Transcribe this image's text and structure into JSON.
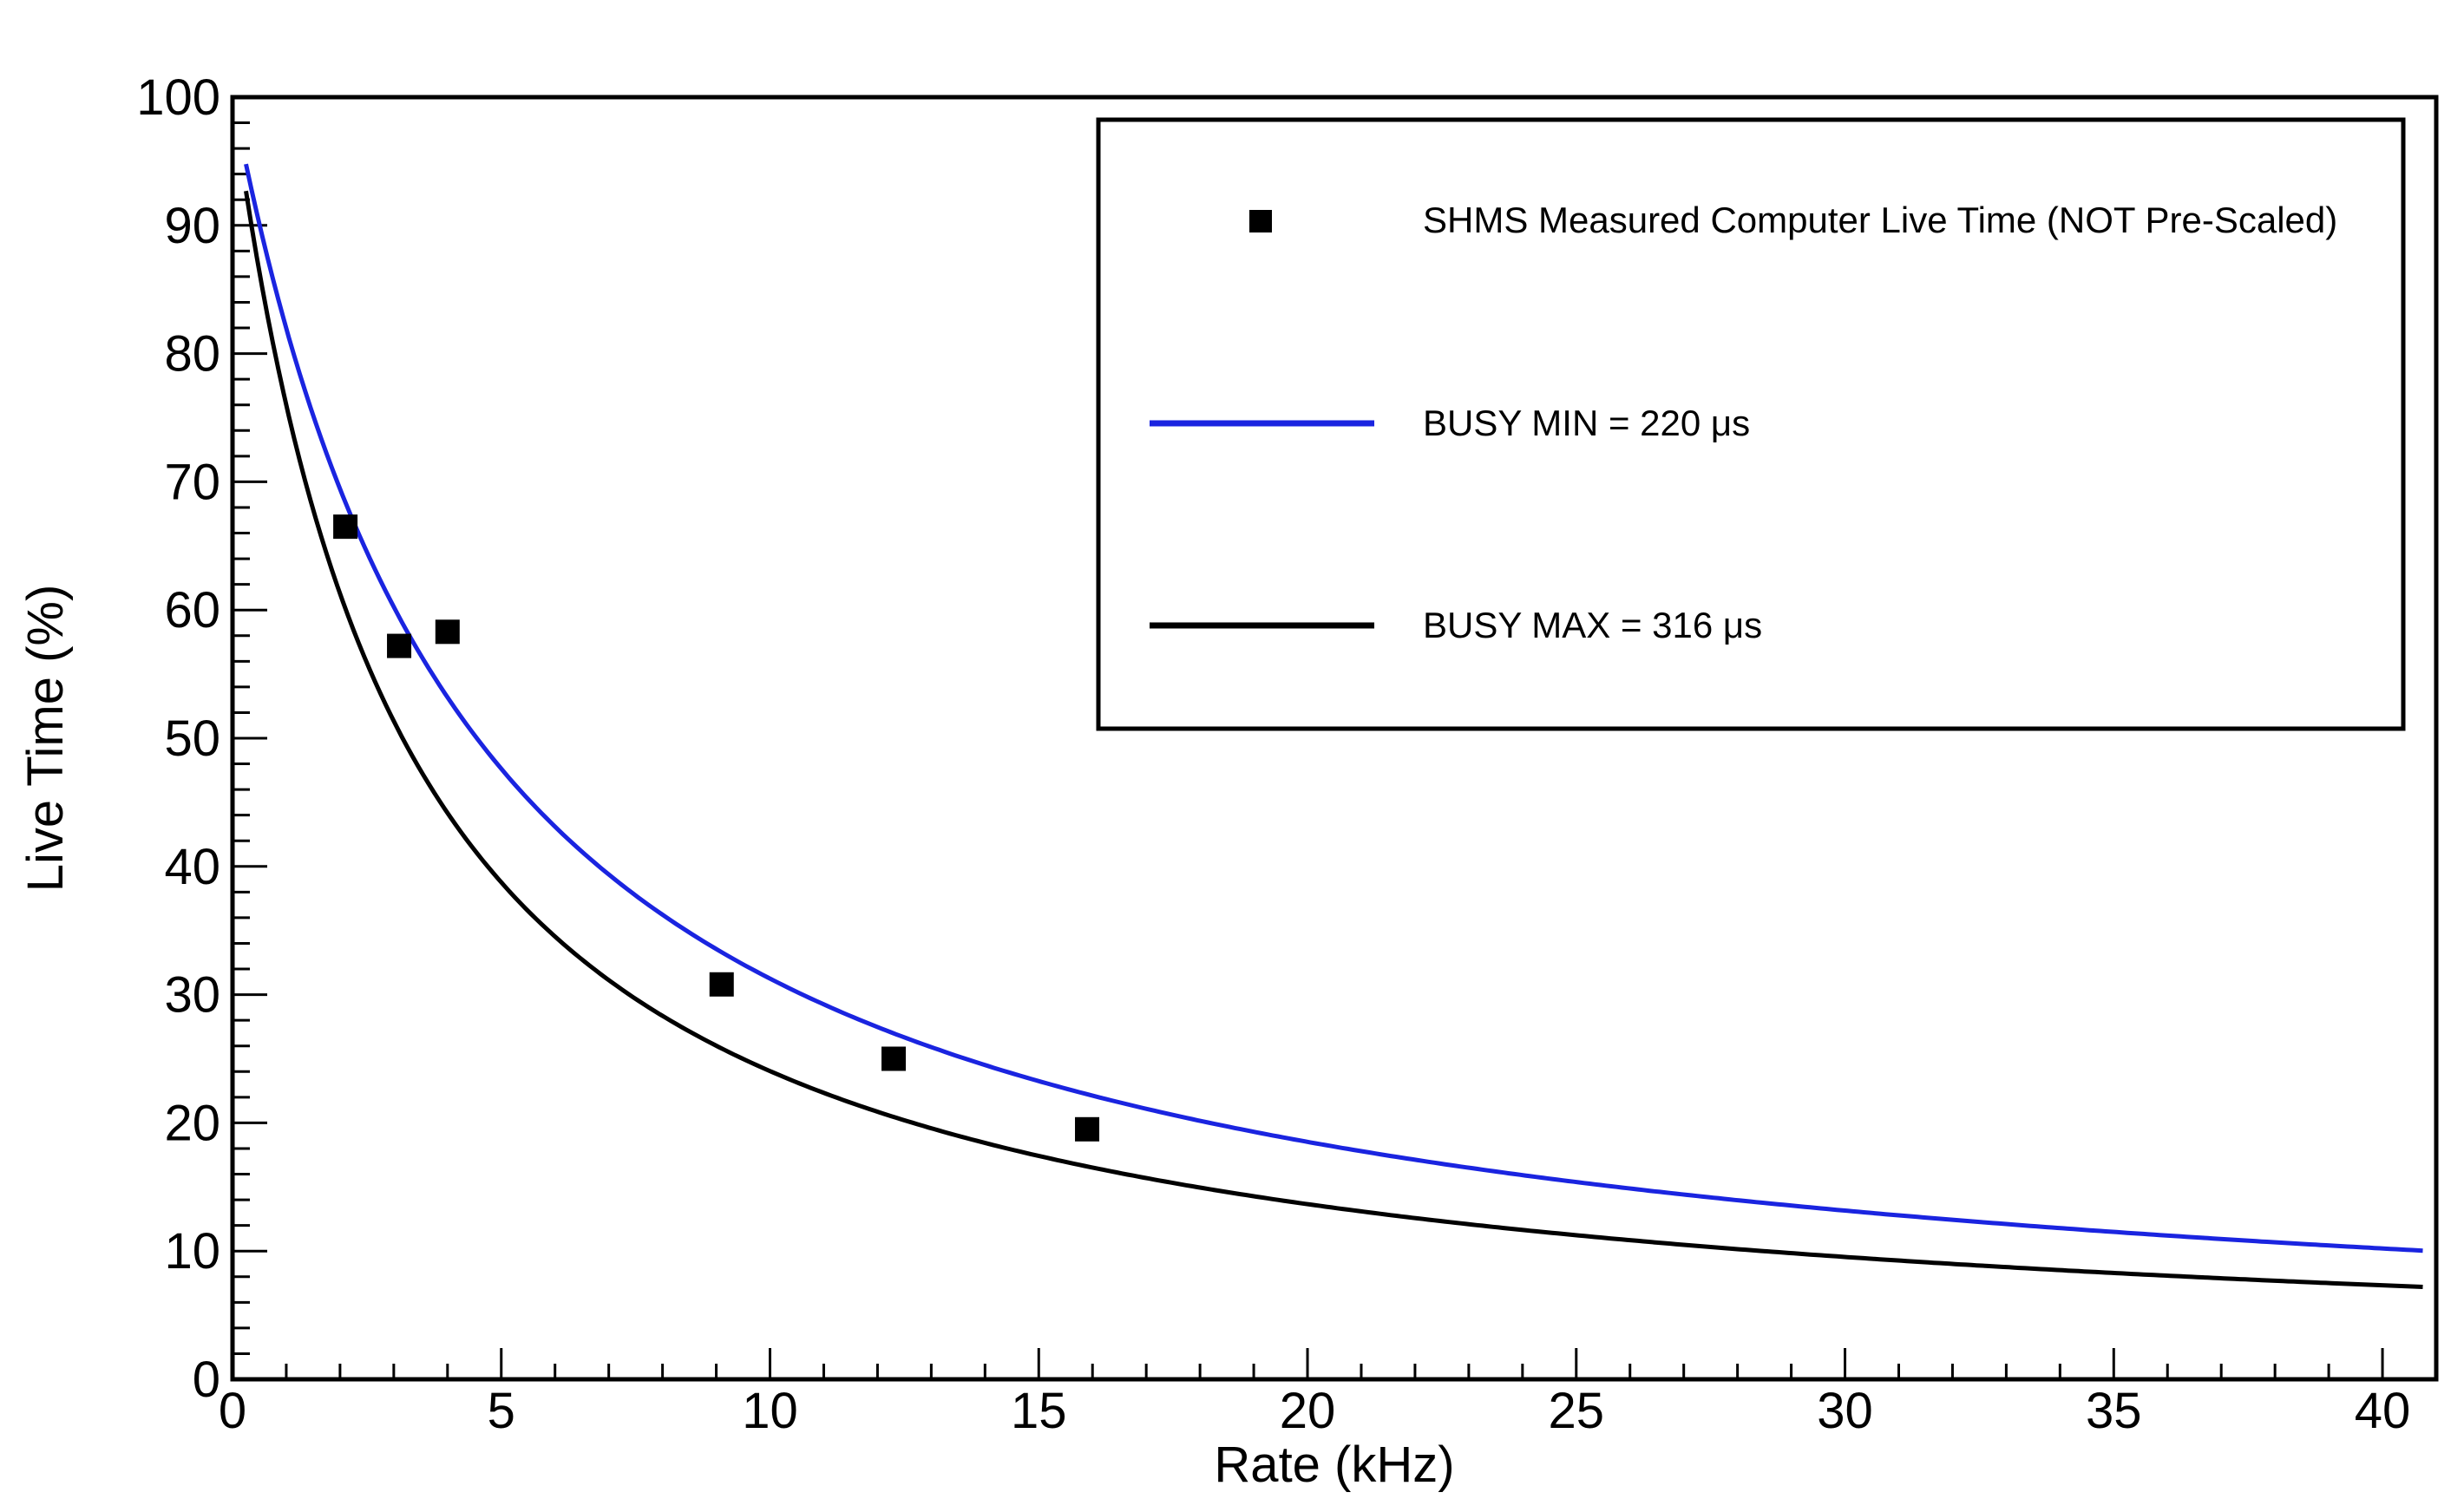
{
  "chart_data": {
    "type": "scatter",
    "title": "",
    "xlabel": "Rate (kHz)",
    "ylabel": "Live Time (%)",
    "xlim": [
      0,
      41
    ],
    "ylim": [
      0,
      100
    ],
    "x_ticks": [
      0,
      5,
      10,
      15,
      20,
      25,
      30,
      35,
      40
    ],
    "y_ticks": [
      0,
      10,
      20,
      30,
      40,
      50,
      60,
      70,
      80,
      90,
      100
    ],
    "grid": false,
    "legend_position": "top-right",
    "series": [
      {
        "name": "SHMS Measured Computer Live Time (NOT Pre-Scaled)",
        "kind": "markers",
        "marker": "square",
        "color": "#000000",
        "points": [
          {
            "x": 2.1,
            "y": 66.5
          },
          {
            "x": 3.1,
            "y": 57.2
          },
          {
            "x": 4.0,
            "y": 58.3
          },
          {
            "x": 9.1,
            "y": 30.8
          },
          {
            "x": 12.3,
            "y": 25.0
          },
          {
            "x": 15.9,
            "y": 19.5
          }
        ]
      },
      {
        "name": "BUSY MIN = 220 μs",
        "kind": "line",
        "color": "#1a24e0",
        "busy_us": 220,
        "x_range": [
          0.25,
          40.75
        ]
      },
      {
        "name": "BUSY MAX = 316 μs",
        "kind": "line",
        "color": "#000000",
        "busy_us": 316,
        "x_range": [
          0.25,
          40.75
        ]
      }
    ]
  }
}
